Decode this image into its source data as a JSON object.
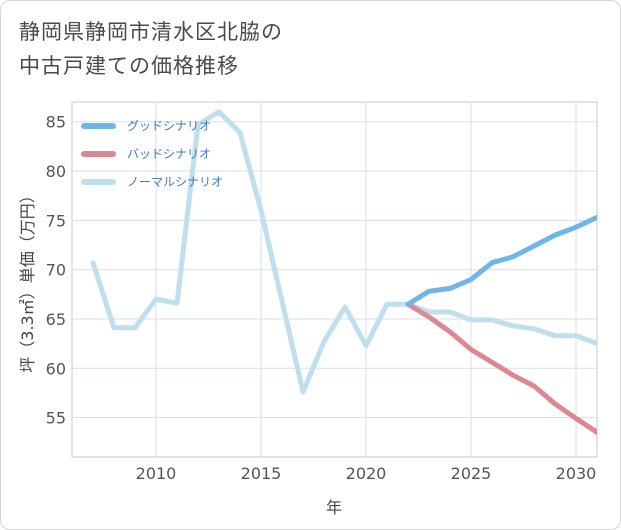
{
  "chart_data": {
    "type": "line",
    "title_line1": "静岡県静岡市清水区北脇の",
    "title_line2": "中古戸建ての価格推移",
    "xlabel": "年",
    "ylabel": "坪（3.3㎡）単価（万円）",
    "xlim": [
      2006,
      2031
    ],
    "ylim": [
      51,
      87
    ],
    "x_ticks": [
      2010,
      2015,
      2020,
      2025,
      2030
    ],
    "y_ticks": [
      55,
      60,
      65,
      70,
      75,
      80,
      85
    ],
    "grid": true,
    "legend_position": "top-left",
    "series": [
      {
        "name": "グッドシナリオ",
        "color": "#6cb6ea",
        "x": [
          2022,
          2023,
          2024,
          2025,
          2026,
          2027,
          2028,
          2029,
          2030,
          2031
        ],
        "values": [
          66.5,
          67.8,
          68.1,
          69.0,
          70.7,
          71.3,
          72.4,
          73.5,
          74.3,
          75.3
        ]
      },
      {
        "name": "バッドシナリオ",
        "color": "#dd8890",
        "x": [
          2022,
          2023,
          2024,
          2025,
          2026,
          2027,
          2028,
          2029,
          2030,
          2031
        ],
        "values": [
          66.5,
          65.2,
          63.7,
          61.9,
          60.6,
          59.3,
          58.2,
          56.4,
          54.9,
          53.5
        ]
      },
      {
        "name": "ノーマルシナリオ",
        "color": "#bfdfee",
        "x": [
          2007,
          2008,
          2009,
          2010,
          2011,
          2012,
          2013,
          2014,
          2015,
          2016,
          2017,
          2018,
          2019,
          2020,
          2021,
          2022,
          2023,
          2024,
          2025,
          2026,
          2027,
          2028,
          2029,
          2030,
          2031
        ],
        "values": [
          70.7,
          64.1,
          64.1,
          67.0,
          66.6,
          84.7,
          86.0,
          83.9,
          76.0,
          66.8,
          57.6,
          62.7,
          66.2,
          62.3,
          66.5,
          66.5,
          65.7,
          65.7,
          64.9,
          64.9,
          64.3,
          64.0,
          63.3,
          63.3,
          62.5
        ]
      }
    ]
  }
}
